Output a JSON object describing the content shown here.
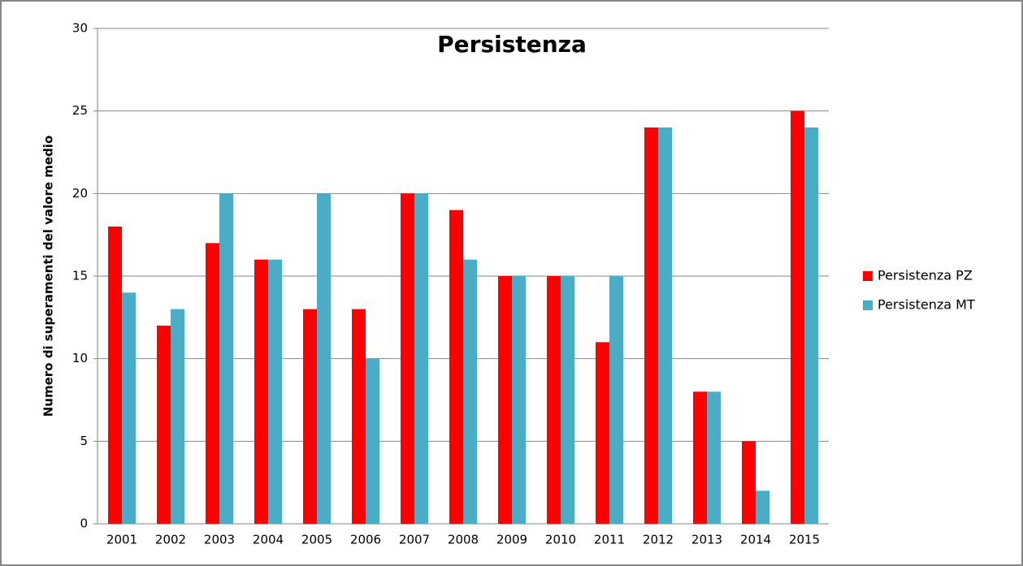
{
  "chart_data": {
    "type": "bar",
    "title": "Persistenza",
    "y_label": "Numero di superamenti del valore medio",
    "categories": [
      "2001",
      "2002",
      "2003",
      "2004",
      "2005",
      "2006",
      "2007",
      "2008",
      "2009",
      "2010",
      "2011",
      "2012",
      "2013",
      "2014",
      "2015"
    ],
    "series": [
      {
        "name": "Persistenza PZ",
        "color": "#ff0000",
        "values": [
          18,
          12,
          17,
          16,
          13,
          13,
          20,
          19,
          15,
          15,
          11,
          24,
          8,
          5,
          25
        ]
      },
      {
        "name": "Persistenza MT",
        "color": "#4bacc6",
        "values": [
          14,
          13,
          20,
          16,
          20,
          10,
          20,
          16,
          15,
          15,
          15,
          24,
          8,
          2,
          24
        ]
      }
    ],
    "ylim": [
      0,
      30
    ],
    "yticks": [
      0,
      5,
      10,
      15,
      20,
      25,
      30
    ],
    "grid": true,
    "legend": "right"
  }
}
